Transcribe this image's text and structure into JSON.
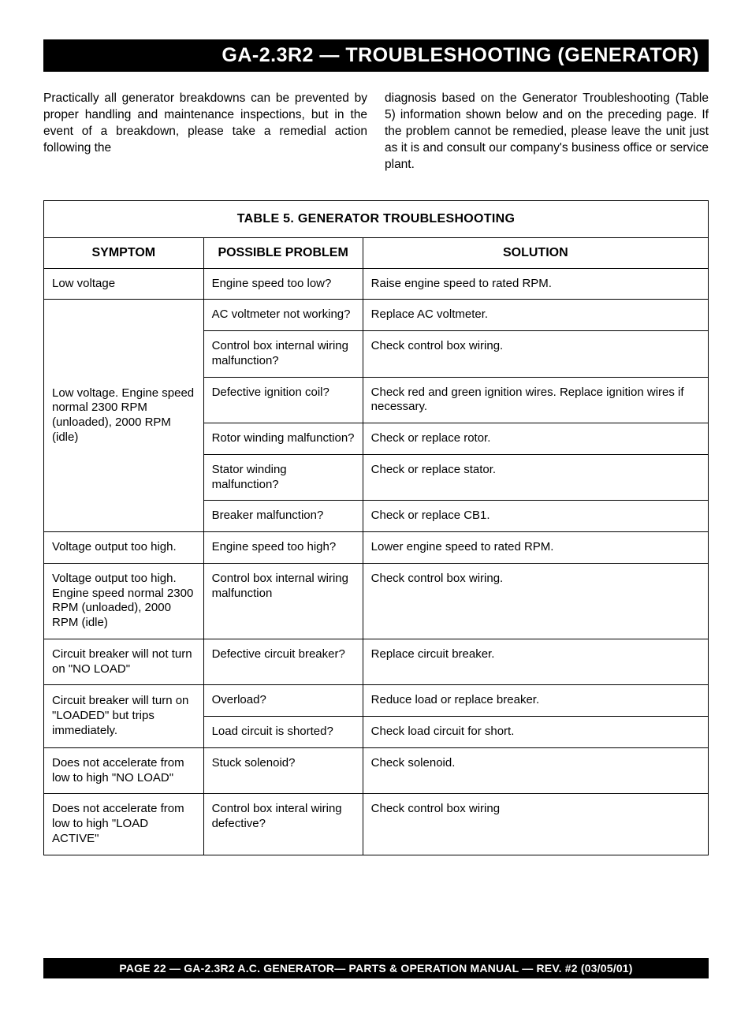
{
  "header": {
    "title": "GA-2.3R2 — TROUBLESHOOTING (GENERATOR)"
  },
  "intro": {
    "col1": "Practically all generator breakdowns can be prevented by proper handling and maintenance inspections, but in the event of a breakdown, please take a remedial action following the",
    "col2": "diagnosis based on the Generator Troubleshooting (Table 5) information shown below and on the preceding page. If the problem cannot be remedied, please leave the unit just as it is and consult our company's business office or service plant."
  },
  "table": {
    "title": "TABLE 5.  GENERATOR TROUBLESHOOTING",
    "columns": {
      "symptom": "SYMPTOM",
      "problem": "POSSIBLE PROBLEM",
      "solution": "SOLUTION"
    },
    "column_widths_pct": [
      24,
      24,
      52
    ],
    "border_color": "#000000",
    "background_color": "#ffffff",
    "header_font_weight": "bold",
    "body_fontsize_pt": 11,
    "rows": [
      {
        "symptom": "Low voltage",
        "problem": "Engine speed too low?",
        "solution": "Raise engine speed to rated RPM."
      },
      {
        "symptom": "Low voltage. Engine speed normal 2300 RPM (unloaded), 2000 RPM (idle)",
        "symptom_rowspan": 6,
        "problem": "AC voltmeter not working?",
        "solution": "Replace AC voltmeter."
      },
      {
        "problem": "Control box internal wiring malfunction?",
        "solution": "Check control box wiring."
      },
      {
        "problem": "Defective ignition coil?",
        "solution": "Check red and green ignition wires. Replace ignition wires if necessary."
      },
      {
        "problem": "Rotor winding malfunction?",
        "solution": "Check or replace rotor."
      },
      {
        "problem": "Stator winding malfunction?",
        "solution": "Check or replace stator."
      },
      {
        "problem": "Breaker malfunction?",
        "solution": "Check or replace CB1."
      },
      {
        "symptom": "Voltage output too high.",
        "problem": "Engine speed too high?",
        "solution": "Lower engine speed to rated RPM."
      },
      {
        "symptom": "Voltage output too high. Engine speed normal 2300 RPM (unloaded), 2000 RPM (idle)",
        "problem": "Control box internal wiring malfunction",
        "solution": "Check control box wiring."
      },
      {
        "symptom": "Circuit breaker will not turn on \"NO LOAD\"",
        "problem": "Defective circuit breaker?",
        "solution": "Replace circuit breaker."
      },
      {
        "symptom": "Circuit breaker will turn on \"LOADED\" but trips immediately.",
        "symptom_rowspan": 2,
        "problem": "Overload?",
        "solution": "Reduce load or replace breaker."
      },
      {
        "problem": "Load circuit is shorted?",
        "solution": "Check load circuit for short."
      },
      {
        "symptom": "Does not accelerate from low to high \"NO LOAD\"",
        "problem": "Stuck solenoid?",
        "solution": "Check solenoid."
      },
      {
        "symptom": "Does not accelerate from low to high \"LOAD ACTIVE\"",
        "problem": "Control box interal wiring defective?",
        "solution": "Check control box wiring"
      }
    ]
  },
  "footer": {
    "text": "PAGE 22 — GA-2.3R2 A.C. GENERATOR— PARTS & OPERATION MANUAL — REV. #2 (03/05/01)"
  }
}
